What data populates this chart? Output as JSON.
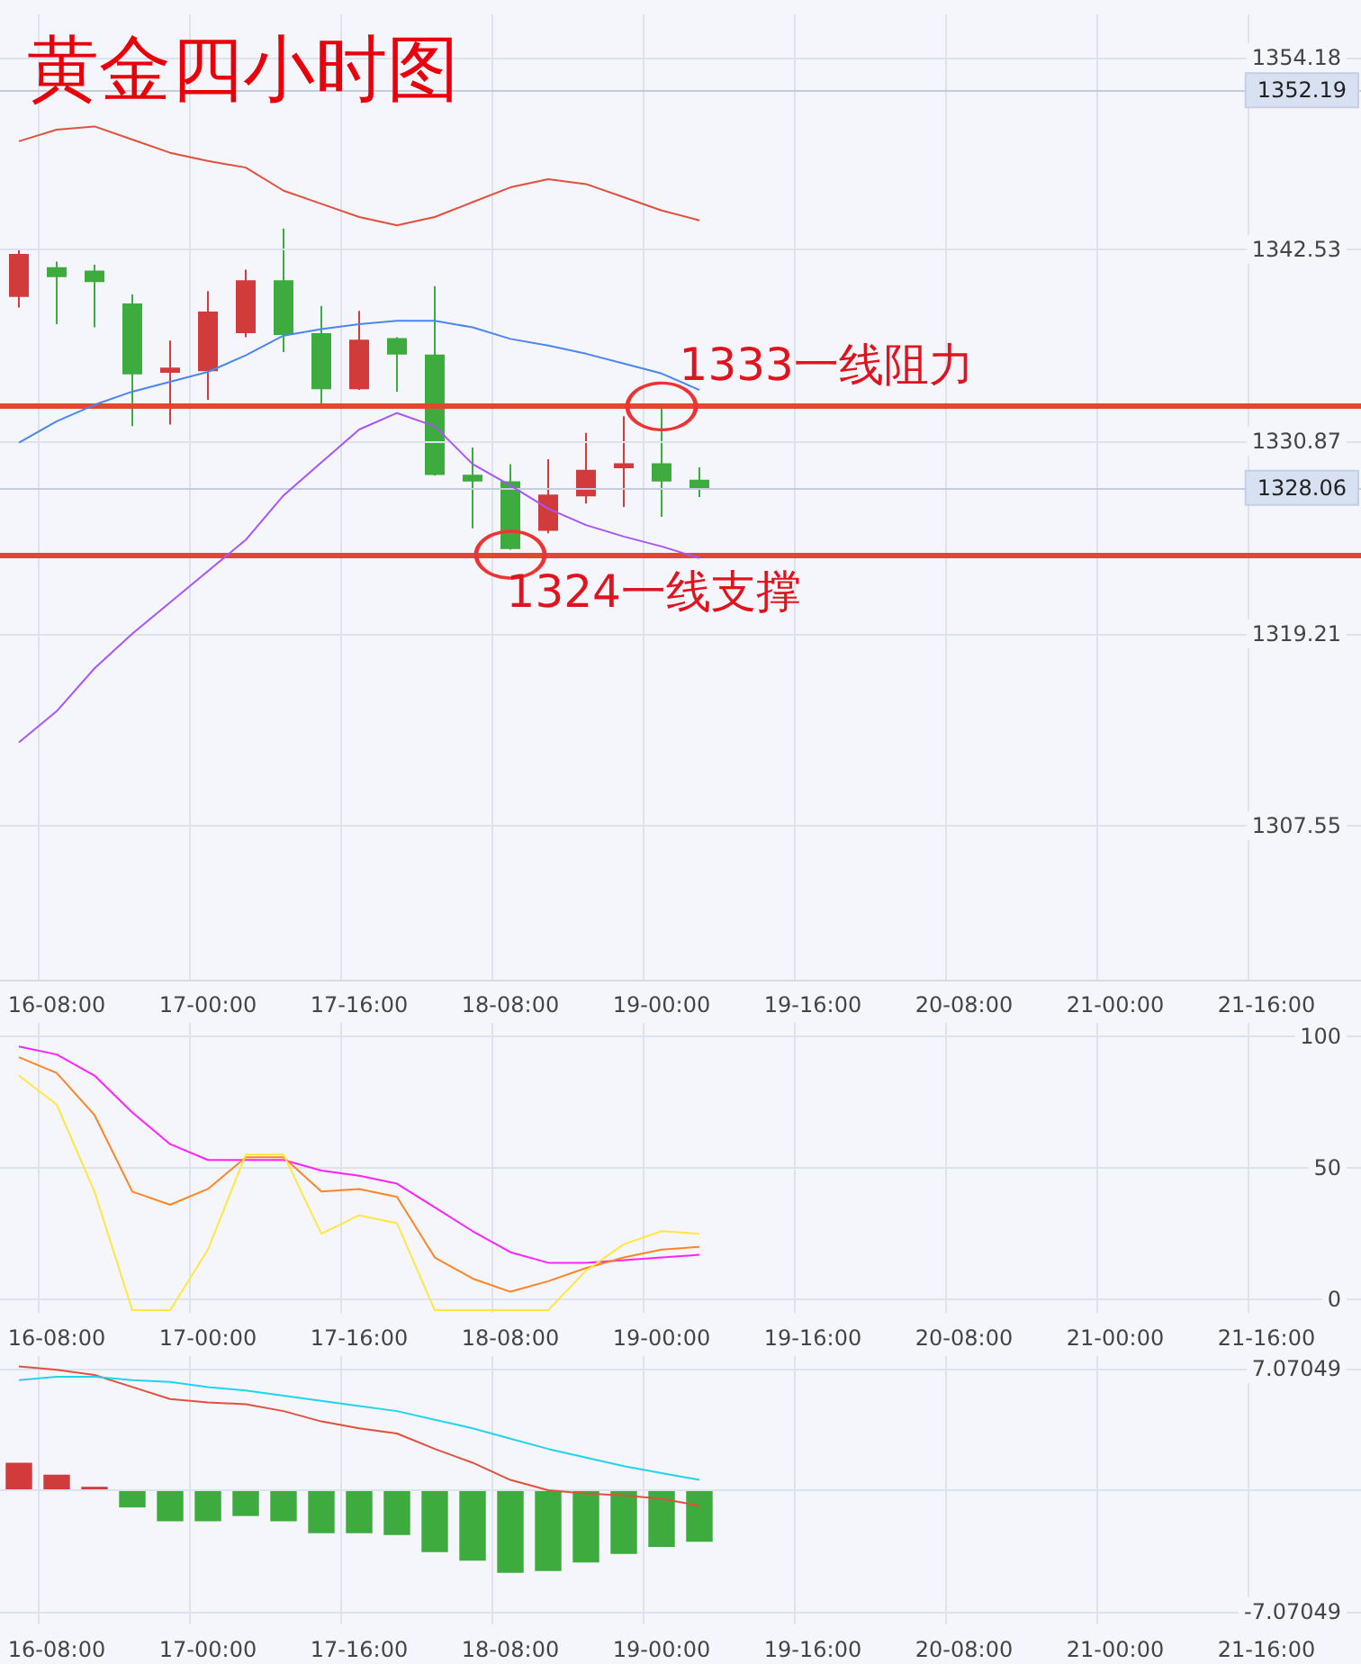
{
  "chart_data": [
    {
      "type": "candlestick",
      "title": "黄金四小时图",
      "categories": [
        null,
        "16-08:00",
        null,
        null,
        null,
        "17-00:00",
        null,
        null,
        null,
        "17-16:00",
        null,
        null,
        null,
        "18-08:00",
        null,
        null,
        null,
        "19-00:00",
        null,
        null,
        null,
        "19-16:00",
        null,
        null,
        null,
        "20-08:00",
        null,
        null,
        null,
        "21-00:00",
        null,
        null,
        null,
        "21-16:00",
        null,
        null
      ],
      "ohlc": [
        [
          1339.7,
          1342.5,
          1339.0,
          1342.2
        ],
        [
          1341.4,
          1341.8,
          1338.0,
          1340.9
        ],
        [
          1341.2,
          1341.6,
          1337.8,
          1340.6
        ],
        [
          1339.2,
          1339.8,
          1331.8,
          1335.0
        ],
        [
          1335.1,
          1337.0,
          1331.9,
          1335.3
        ],
        [
          1335.2,
          1340.0,
          1333.4,
          1338.7
        ],
        [
          1337.5,
          1341.3,
          1337.2,
          1340.6
        ],
        [
          1340.6,
          1343.8,
          1336.3,
          1337.4
        ],
        [
          1337.4,
          1339.1,
          1332.9,
          1334.1
        ],
        [
          1334.1,
          1338.8,
          1334.0,
          1337.0
        ],
        [
          1337.1,
          1337.2,
          1333.9,
          1336.2
        ],
        [
          1336.1,
          1340.3,
          1328.8,
          1328.9
        ],
        [
          1328.8,
          1330.5,
          1325.6,
          1328.5
        ],
        [
          1328.4,
          1329.5,
          1324.3,
          1324.4
        ],
        [
          1325.5,
          1329.8,
          1325.3,
          1327.6
        ],
        [
          1327.6,
          1331.4,
          1327.1,
          1329.1
        ],
        [
          1329.3,
          1332.4,
          1326.9,
          1329.5
        ],
        [
          1329.5,
          1332.9,
          1326.3,
          1328.5
        ],
        [
          1328.5,
          1329.3,
          1327.5,
          1328.1
        ],
        null,
        null,
        null,
        null,
        null,
        null,
        null,
        null,
        null,
        null,
        null,
        null,
        null,
        null,
        null,
        null,
        null
      ],
      "colors": [
        "#d23b3b",
        "#3dab3d",
        "#3dab3d",
        "#3dab3d",
        "#d23b3b",
        "#d23b3b",
        "#d23b3b",
        "#3dab3d",
        "#3dab3d",
        "#d23b3b",
        "#3dab3d",
        "#3dab3d",
        "#3dab3d",
        "#3dab3d",
        "#d23b3b",
        "#d23b3b",
        "#d23b3b",
        "#3dab3d",
        "#3dab3d",
        null,
        null,
        null,
        null,
        null,
        null,
        null,
        null,
        null,
        null,
        null,
        null,
        null,
        null,
        null,
        null,
        null
      ],
      "series": [
        {
          "type": "line",
          "color": "#e0503c",
          "values": [
            1349.1,
            1349.8,
            1350.0,
            1349.2,
            1348.4,
            1347.9,
            1347.5,
            1346.1,
            1345.3,
            1344.5,
            1344.0,
            1344.5,
            1345.4,
            1346.3,
            1346.8,
            1346.5,
            1345.7,
            1344.9,
            1344.3,
            null,
            null,
            null,
            null,
            null,
            null,
            null,
            null,
            null,
            null,
            null,
            null,
            null,
            null,
            null,
            null,
            null
          ]
        },
        {
          "type": "line",
          "color": "#4a86f0",
          "values": [
            1330.8,
            1332.1,
            1333.1,
            1333.9,
            1334.5,
            1335.1,
            1336.1,
            1337.3,
            1337.7,
            1338.0,
            1338.2,
            1338.2,
            1337.8,
            1337.1,
            1336.7,
            1336.2,
            1335.6,
            1335.0,
            1334.0,
            null,
            null,
            null,
            null,
            null,
            null,
            null,
            null,
            null,
            null,
            null,
            null,
            null,
            null,
            null,
            null,
            null
          ]
        },
        {
          "type": "line",
          "color": "#a855f7",
          "values": [
            1312.6,
            1314.5,
            1317.1,
            1319.2,
            1321.1,
            1323.0,
            1324.9,
            1327.6,
            1329.6,
            1331.6,
            1332.6,
            1331.8,
            1329.5,
            1328.2,
            1326.8,
            1325.8,
            1325.1,
            1324.5,
            1323.8,
            null,
            null,
            null,
            null,
            null,
            null,
            null,
            null,
            null,
            null,
            null,
            null,
            null,
            null,
            null,
            null,
            null
          ]
        }
      ],
      "ylim": [
        1298.2,
        1356.8
      ],
      "yticks": [
        1307.55,
        1319.21,
        1330.87,
        1342.53,
        1354.18
      ],
      "ref_lines": [
        {
          "axis": "y",
          "value": 1333,
          "label": null,
          "color": "#e04830"
        },
        {
          "axis": "y",
          "value": 1324,
          "label": null,
          "color": "#e04830"
        },
        {
          "axis": "y",
          "value": 1352.19,
          "label": "1352.19",
          "color": "#c4cbdb"
        },
        {
          "axis": "y",
          "value": 1328.06,
          "label": "1328.06",
          "color": "#c4cbdb"
        }
      ],
      "annotations": [
        {
          "text": "1333一线阻力",
          "x": "19-00:00",
          "y": 1333
        },
        {
          "text": "1324一线支撑",
          "x": "18-08:00",
          "y": 1324
        }
      ],
      "grid": true,
      "marker": "none"
    },
    {
      "type": "line",
      "categories": [
        null,
        "16-08:00",
        null,
        null,
        null,
        "17-00:00",
        null,
        null,
        null,
        "17-16:00",
        null,
        null,
        null,
        "18-08:00",
        null,
        null,
        null,
        "19-00:00",
        null,
        null,
        null,
        "19-16:00",
        null,
        null,
        null,
        "20-08:00",
        null,
        null,
        null,
        "21-00:00",
        null,
        null,
        null,
        "21-16:00",
        null,
        null
      ],
      "series": [
        {
          "color": "#ff22ff",
          "values": [
            96,
            93,
            85,
            71,
            59,
            53,
            53,
            53,
            49,
            47,
            44,
            35,
            26,
            18,
            14,
            14,
            15,
            16,
            17,
            null,
            null,
            null,
            null,
            null,
            null,
            null,
            null,
            null,
            null,
            null,
            null,
            null,
            null,
            null,
            null,
            null
          ]
        },
        {
          "color": "#ff8424",
          "values": [
            92,
            86,
            70,
            41,
            36,
            42,
            54,
            54,
            41,
            42,
            39,
            16,
            8,
            3,
            7,
            12,
            16,
            19,
            20,
            null,
            null,
            null,
            null,
            null,
            null,
            null,
            null,
            null,
            null,
            null,
            null,
            null,
            null,
            null,
            null,
            null
          ]
        },
        {
          "color": "#ffe640",
          "values": [
            85,
            74,
            41,
            -4,
            -4,
            19,
            55,
            55,
            25,
            32,
            29,
            -4,
            -4,
            -4,
            -4,
            11,
            21,
            26,
            25,
            null,
            null,
            null,
            null,
            null,
            null,
            null,
            null,
            null,
            null,
            null,
            null,
            null,
            null,
            null,
            null,
            null
          ]
        }
      ],
      "ylim": [
        -5,
        105
      ],
      "yticks": [
        0,
        50,
        100
      ],
      "grid": true,
      "marker": "none"
    },
    {
      "type": "bar",
      "categories": [
        null,
        "16-08:00",
        null,
        null,
        null,
        "17-00:00",
        null,
        null,
        null,
        "17-16:00",
        null,
        null,
        null,
        "18-08:00",
        null,
        null,
        null,
        "19-00:00",
        null,
        null,
        null,
        "19-16:00",
        null,
        null,
        null,
        "20-08:00",
        null,
        null,
        null,
        "21-00:00",
        null,
        null,
        null,
        "21-16:00",
        null,
        null
      ],
      "series": [
        {
          "type": "bar",
          "colors": [
            "#d23b3b",
            "#d23b3b",
            "#d23b3b",
            "#3dab3d",
            "#3dab3d",
            "#3dab3d",
            "#3dab3d",
            "#3dab3d",
            "#3dab3d",
            "#3dab3d",
            "#3dab3d",
            "#3dab3d",
            "#3dab3d",
            "#3dab3d",
            "#3dab3d",
            "#3dab3d",
            "#3dab3d",
            "#3dab3d",
            "#3dab3d",
            null,
            null,
            null,
            null,
            null,
            null,
            null,
            null,
            null,
            null,
            null,
            null,
            null,
            null,
            null,
            null,
            null
          ],
          "values": [
            1.6,
            0.9,
            0.2,
            -1.0,
            -1.8,
            -1.8,
            -1.5,
            -1.8,
            -2.5,
            -2.5,
            -2.6,
            -3.6,
            -4.1,
            -4.8,
            -4.7,
            -4.2,
            -3.7,
            -3.3,
            -3.0,
            null,
            null,
            null,
            null,
            null,
            null,
            null,
            null,
            null,
            null,
            null,
            null,
            null,
            null,
            null,
            null,
            null
          ]
        },
        {
          "type": "line",
          "color": "#e0503c",
          "values": [
            7.2,
            7.0,
            6.7,
            6.0,
            5.3,
            5.1,
            5.0,
            4.6,
            4.0,
            3.6,
            3.3,
            2.4,
            1.6,
            0.6,
            0.0,
            -0.2,
            -0.3,
            -0.5,
            -0.9,
            null,
            null,
            null,
            null,
            null,
            null,
            null,
            null,
            null,
            null,
            null,
            null,
            null,
            null,
            null,
            null,
            null
          ]
        },
        {
          "type": "line",
          "color": "#22d3ee",
          "values": [
            6.4,
            6.6,
            6.6,
            6.4,
            6.3,
            6.0,
            5.8,
            5.5,
            5.2,
            4.9,
            4.6,
            4.1,
            3.6,
            3.0,
            2.4,
            1.9,
            1.4,
            1.0,
            0.6,
            null,
            null,
            null,
            null,
            null,
            null,
            null,
            null,
            null,
            null,
            null,
            null,
            null,
            null,
            null,
            null,
            null
          ]
        }
      ],
      "ylim": [
        -7.8,
        7.8
      ],
      "yticks": [
        -7.07049,
        {
          "value": 0,
          "label": null
        },
        7.07049
      ],
      "grid": true,
      "marker": "none"
    }
  ]
}
